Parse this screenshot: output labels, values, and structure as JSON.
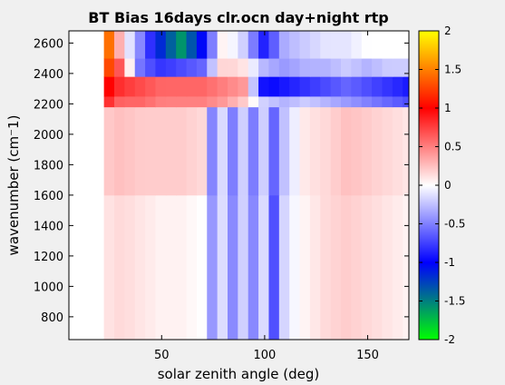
{
  "chart_data": {
    "type": "heatmap",
    "title": "BT Bias 16days clr.ocn day+night rtp",
    "xlabel": "solar zenith angle (deg)",
    "ylabel": "wavenumber (cm⁻1)",
    "xlim": [
      5,
      170
    ],
    "ylim": [
      650,
      2680
    ],
    "x_ticks": [
      50,
      100,
      150
    ],
    "y_ticks": [
      800,
      1000,
      1200,
      1400,
      1600,
      1800,
      2000,
      2200,
      2400,
      2600
    ],
    "colorbar": {
      "range": [
        -2,
        2
      ],
      "ticks": [
        -2,
        -1.5,
        -1,
        -0.5,
        0,
        0.5,
        1,
        1.5,
        2
      ],
      "colormap": [
        "#00ff00",
        "#0000ff",
        "#ffffff",
        "#ff0000",
        "#ffff00"
      ]
    },
    "data_x_range": [
      22,
      170
    ],
    "bands": [
      {
        "wn": [
          650,
          1600
        ],
        "bias_by_x": [
          [
            22,
            0.1
          ],
          [
            30,
            0.15
          ],
          [
            40,
            0.1
          ],
          [
            50,
            0.05
          ],
          [
            60,
            0.05
          ],
          [
            70,
            0.0
          ],
          [
            75,
            -0.45
          ],
          [
            80,
            -0.1
          ],
          [
            85,
            -0.5
          ],
          [
            90,
            -0.15
          ],
          [
            95,
            -0.5
          ],
          [
            100,
            -0.1
          ],
          [
            105,
            -0.75
          ],
          [
            110,
            -0.1
          ],
          [
            120,
            0.05
          ],
          [
            130,
            0.15
          ],
          [
            140,
            0.2
          ],
          [
            150,
            0.15
          ],
          [
            160,
            0.1
          ],
          [
            170,
            0.05
          ]
        ]
      },
      {
        "wn": [
          1600,
          2180
        ],
        "bias_by_x": [
          [
            22,
            0.2
          ],
          [
            30,
            0.25
          ],
          [
            40,
            0.2
          ],
          [
            50,
            0.2
          ],
          [
            60,
            0.2
          ],
          [
            70,
            0.15
          ],
          [
            75,
            -0.55
          ],
          [
            80,
            -0.1
          ],
          [
            85,
            -0.55
          ],
          [
            90,
            -0.15
          ],
          [
            95,
            -0.55
          ],
          [
            100,
            -0.15
          ],
          [
            105,
            -0.65
          ],
          [
            110,
            -0.2
          ],
          [
            120,
            0.1
          ],
          [
            130,
            0.15
          ],
          [
            140,
            0.25
          ],
          [
            150,
            0.2
          ],
          [
            160,
            0.15
          ],
          [
            170,
            0.1
          ]
        ]
      },
      {
        "wn": [
          2180,
          2250
        ],
        "bias_by_x": [
          [
            22,
            0.9
          ],
          [
            30,
            0.6
          ],
          [
            40,
            0.6
          ],
          [
            50,
            0.5
          ],
          [
            60,
            0.5
          ],
          [
            70,
            0.5
          ],
          [
            80,
            0.4
          ],
          [
            90,
            0.2
          ],
          [
            100,
            -0.2
          ],
          [
            110,
            -0.3
          ],
          [
            120,
            -0.2
          ],
          [
            130,
            -0.3
          ],
          [
            140,
            -0.4
          ],
          [
            150,
            -0.5
          ],
          [
            160,
            -0.6
          ],
          [
            170,
            -0.7
          ]
        ]
      },
      {
        "wn": [
          2250,
          2380
        ],
        "bias_by_x": [
          [
            22,
            1.1
          ],
          [
            30,
            0.8
          ],
          [
            40,
            0.7
          ],
          [
            50,
            0.6
          ],
          [
            60,
            0.6
          ],
          [
            70,
            0.6
          ],
          [
            80,
            0.5
          ],
          [
            90,
            0.4
          ],
          [
            100,
            -1.0
          ],
          [
            110,
            -0.9
          ],
          [
            120,
            -0.8
          ],
          [
            130,
            -0.7
          ],
          [
            140,
            -0.6
          ],
          [
            150,
            -0.7
          ],
          [
            160,
            -0.8
          ],
          [
            170,
            -0.9
          ]
        ]
      },
      {
        "wn": [
          2380,
          2500
        ],
        "bias_by_x": [
          [
            22,
            1.6
          ],
          [
            30,
            0.6
          ],
          [
            40,
            -0.6
          ],
          [
            50,
            -0.8
          ],
          [
            60,
            -0.7
          ],
          [
            70,
            -0.6
          ],
          [
            80,
            0.2
          ],
          [
            90,
            0.1
          ],
          [
            100,
            -0.3
          ],
          [
            110,
            -0.4
          ],
          [
            120,
            -0.3
          ],
          [
            130,
            -0.3
          ],
          [
            140,
            -0.2
          ],
          [
            150,
            -0.3
          ],
          [
            160,
            -0.2
          ],
          [
            170,
            -0.2
          ]
        ]
      },
      {
        "wn": [
          2500,
          2680
        ],
        "bias_by_x": [
          [
            22,
            2.0
          ],
          [
            30,
            0.2
          ],
          [
            40,
            -0.5
          ],
          [
            50,
            -1.2
          ],
          [
            60,
            -1.6
          ],
          [
            70,
            -1.0
          ],
          [
            80,
            0.1
          ],
          [
            90,
            -0.2
          ],
          [
            100,
            -0.9
          ],
          [
            110,
            -0.3
          ],
          [
            120,
            -0.2
          ],
          [
            130,
            -0.1
          ],
          [
            140,
            -0.1
          ],
          [
            150,
            0.0
          ],
          [
            160,
            0.0
          ],
          [
            170,
            0.0
          ]
        ]
      }
    ]
  }
}
